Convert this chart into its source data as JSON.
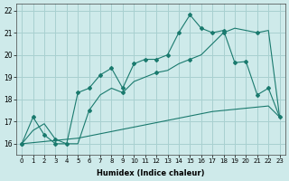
{
  "xlabel": "Humidex (Indice chaleur)",
  "ylabel": "",
  "background_color": "#ceeaea",
  "grid_color": "#a8d0d0",
  "line_color": "#1a7a6e",
  "xlim": [
    -0.5,
    23.5
  ],
  "ylim": [
    15.5,
    22.3
  ],
  "xticks": [
    0,
    1,
    2,
    3,
    4,
    5,
    6,
    7,
    8,
    9,
    10,
    11,
    12,
    13,
    14,
    15,
    16,
    17,
    18,
    19,
    20,
    21,
    22,
    23
  ],
  "yticks": [
    16,
    17,
    18,
    19,
    20,
    21,
    22
  ],
  "line1_x": [
    0,
    1,
    2,
    3,
    4,
    5,
    6,
    7,
    8,
    9,
    10,
    11,
    12,
    13,
    14,
    15,
    16,
    17,
    18,
    19,
    20,
    21,
    22,
    23
  ],
  "line1_y": [
    16.0,
    16.05,
    16.1,
    16.15,
    16.2,
    16.25,
    16.35,
    16.45,
    16.55,
    16.65,
    16.75,
    16.85,
    16.95,
    17.05,
    17.15,
    17.25,
    17.35,
    17.45,
    17.5,
    17.55,
    17.6,
    17.65,
    17.7,
    17.2
  ],
  "line2_x": [
    0,
    1,
    2,
    3,
    4,
    5,
    6,
    7,
    8,
    9,
    10,
    11,
    12,
    13,
    14,
    15,
    16,
    17,
    18,
    19,
    20,
    21,
    22,
    23
  ],
  "line2_y": [
    16.0,
    16.6,
    16.9,
    16.2,
    16.0,
    16.0,
    17.5,
    18.2,
    18.5,
    18.3,
    18.8,
    19.0,
    19.2,
    19.3,
    19.6,
    19.8,
    20.0,
    20.5,
    21.0,
    21.2,
    21.1,
    21.0,
    21.1,
    17.2
  ],
  "line3_x": [
    0,
    1,
    2,
    3,
    4,
    5,
    6,
    7,
    8,
    9,
    10,
    11,
    12,
    13,
    14,
    15,
    16,
    17,
    18,
    19,
    20,
    21,
    22,
    23
  ],
  "line3_y": [
    16.0,
    17.2,
    16.4,
    16.0,
    16.0,
    18.3,
    18.5,
    19.1,
    19.4,
    18.5,
    19.6,
    19.8,
    19.8,
    20.0,
    21.0,
    21.8,
    21.2,
    21.0,
    21.1,
    19.65,
    19.7,
    18.2,
    18.5,
    17.2
  ]
}
